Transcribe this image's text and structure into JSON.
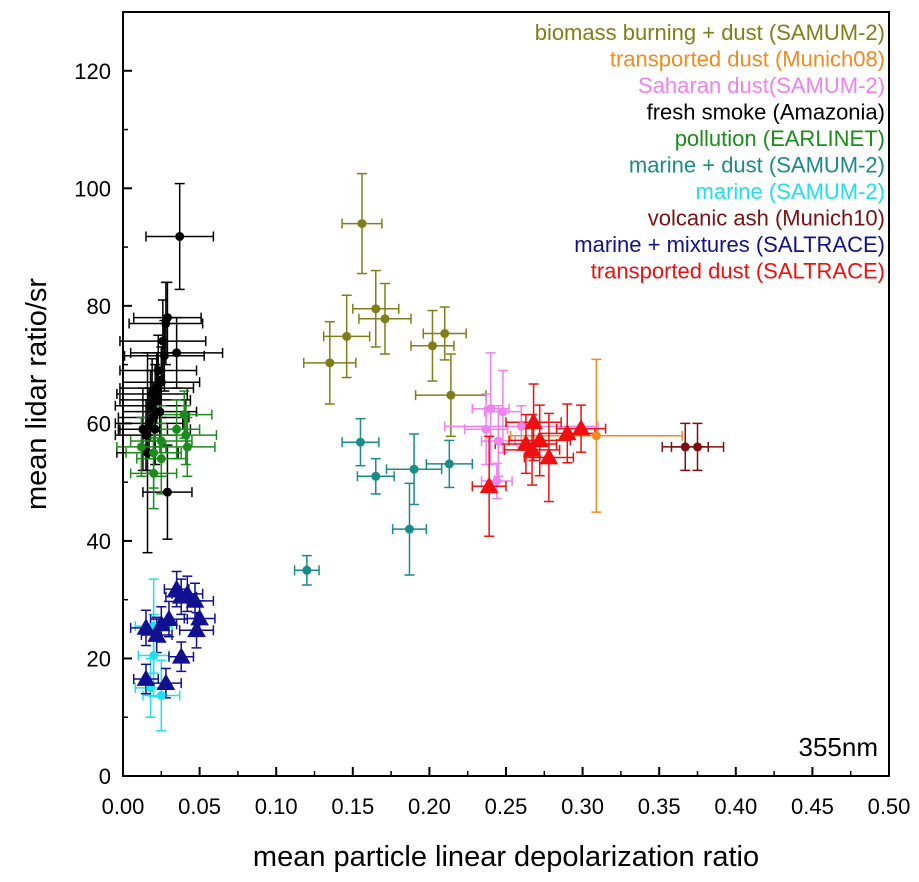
{
  "chart_data": {
    "type": "scatter",
    "title": "",
    "xlabel": "mean particle linear depolarization ratio",
    "ylabel": "mean lidar ratio/sr",
    "xlim": [
      0,
      0.5
    ],
    "ylim": [
      0,
      130
    ],
    "x_ticks": [
      "0.00",
      "0.05",
      "0.10",
      "0.15",
      "0.20",
      "0.25",
      "0.30",
      "0.35",
      "0.40",
      "0.45",
      "0.50"
    ],
    "y_ticks": [
      "0",
      "20",
      "40",
      "60",
      "80",
      "100",
      "120"
    ],
    "annotation": "355nm",
    "legend_position": "top-right",
    "series": [
      {
        "name": "biomass burning + dust (SAMUM-2)",
        "color": "#7f7f1a",
        "marker": "circle",
        "points": [
          {
            "x": 0.156,
            "y": 94,
            "ex": 0.013,
            "ey": 8.5
          },
          {
            "x": 0.146,
            "y": 74.8,
            "ex": 0.015,
            "ey": 7
          },
          {
            "x": 0.165,
            "y": 79.5,
            "ex": 0.015,
            "ey": 6.5
          },
          {
            "x": 0.171,
            "y": 77.8,
            "ex": 0.017,
            "ey": 6
          },
          {
            "x": 0.135,
            "y": 70.3,
            "ex": 0.017,
            "ey": 7
          },
          {
            "x": 0.202,
            "y": 73.2,
            "ex": 0.014,
            "ey": 6
          },
          {
            "x": 0.21,
            "y": 75.3,
            "ex": 0.014,
            "ey": 4.5
          },
          {
            "x": 0.214,
            "y": 64.8,
            "ex": 0.023,
            "ey": 7
          }
        ]
      },
      {
        "name": "transported dust (Munich08)",
        "color": "#f28a1e",
        "marker": "circle",
        "points": [
          {
            "x": 0.309,
            "y": 57.9,
            "ex": 0.056,
            "ey": 13
          }
        ]
      },
      {
        "name": "Saharan dust(SAMUM-2)",
        "color": "#ee82ee",
        "marker": "circle",
        "points": [
          {
            "x": 0.24,
            "y": 62.5,
            "ex": 0.012,
            "ey": 9.5
          },
          {
            "x": 0.248,
            "y": 62,
            "ex": 0.012,
            "ey": 7
          },
          {
            "x": 0.237,
            "y": 59,
            "ex": 0.014,
            "ey": 6
          },
          {
            "x": 0.245,
            "y": 57,
            "ex": 0.011,
            "ey": 6
          },
          {
            "x": 0.26,
            "y": 59.5,
            "ex": 0.05,
            "ey": 3.5
          },
          {
            "x": 0.244,
            "y": 50.2,
            "ex": 0.01,
            "ey": 3
          }
        ]
      },
      {
        "name": "fresh smoke (Amazonia)",
        "color": "#000000",
        "marker": "circle",
        "points": [
          {
            "x": 0.037,
            "y": 91.8,
            "ex": 0.022,
            "ey": 9
          },
          {
            "x": 0.029,
            "y": 78,
            "ex": 0.022,
            "ey": 6
          },
          {
            "x": 0.028,
            "y": 77,
            "ex": 0.024,
            "ey": 7
          },
          {
            "x": 0.026,
            "y": 74,
            "ex": 0.028,
            "ey": 7
          },
          {
            "x": 0.035,
            "y": 72,
            "ex": 0.03,
            "ey": 6
          },
          {
            "x": 0.027,
            "y": 71.5,
            "ex": 0.026,
            "ey": 6
          },
          {
            "x": 0.023,
            "y": 69,
            "ex": 0.025,
            "ey": 6
          },
          {
            "x": 0.025,
            "y": 67,
            "ex": 0.025,
            "ey": 6
          },
          {
            "x": 0.022,
            "y": 66,
            "ex": 0.024,
            "ey": 6
          },
          {
            "x": 0.019,
            "y": 65,
            "ex": 0.023,
            "ey": 6
          },
          {
            "x": 0.021,
            "y": 64,
            "ex": 0.023,
            "ey": 6
          },
          {
            "x": 0.018,
            "y": 63,
            "ex": 0.023,
            "ey": 6
          },
          {
            "x": 0.024,
            "y": 62,
            "ex": 0.024,
            "ey": 6
          },
          {
            "x": 0.02,
            "y": 61,
            "ex": 0.023,
            "ey": 6
          },
          {
            "x": 0.017,
            "y": 60,
            "ex": 0.022,
            "ey": 6
          },
          {
            "x": 0.021,
            "y": 59,
            "ex": 0.023,
            "ey": 6
          },
          {
            "x": 0.015,
            "y": 58,
            "ex": 0.02,
            "ey": 6
          },
          {
            "x": 0.013,
            "y": 59,
            "ex": 0.016,
            "ey": 7
          },
          {
            "x": 0.016,
            "y": 55,
            "ex": 0.02,
            "ey": 17
          },
          {
            "x": 0.029,
            "y": 48.3,
            "ex": 0.016,
            "ey": 8
          }
        ]
      },
      {
        "name": "pollution (EARLINET)",
        "color": "#1a8c1a",
        "marker": "circle",
        "points": [
          {
            "x": 0.04,
            "y": 61.5,
            "ex": 0.018,
            "ey": 4
          },
          {
            "x": 0.035,
            "y": 59,
            "ex": 0.015,
            "ey": 5
          },
          {
            "x": 0.041,
            "y": 58,
            "ex": 0.02,
            "ey": 5
          },
          {
            "x": 0.042,
            "y": 56,
            "ex": 0.018,
            "ey": 5
          },
          {
            "x": 0.025,
            "y": 57,
            "ex": 0.02,
            "ey": 6
          },
          {
            "x": 0.02,
            "y": 55,
            "ex": 0.018,
            "ey": 6
          },
          {
            "x": 0.012,
            "y": 56,
            "ex": 0.016,
            "ey": 5
          },
          {
            "x": 0.025,
            "y": 54,
            "ex": 0.016,
            "ey": 6
          },
          {
            "x": 0.02,
            "y": 51.5,
            "ex": 0.015,
            "ey": 6
          }
        ]
      },
      {
        "name": "marine + dust (SAMUM-2)",
        "color": "#1a8a8a",
        "marker": "circle",
        "points": [
          {
            "x": 0.155,
            "y": 56.8,
            "ex": 0.012,
            "ey": 4
          },
          {
            "x": 0.165,
            "y": 51,
            "ex": 0.012,
            "ey": 3
          },
          {
            "x": 0.19,
            "y": 52.2,
            "ex": 0.018,
            "ey": 6
          },
          {
            "x": 0.213,
            "y": 53.1,
            "ex": 0.015,
            "ey": 4
          },
          {
            "x": 0.187,
            "y": 42,
            "ex": 0.011,
            "ey": 7.8
          },
          {
            "x": 0.12,
            "y": 35,
            "ex": 0.008,
            "ey": 2.5
          }
        ]
      },
      {
        "name": "marine (SAMUM-2)",
        "color": "#1ee0f0",
        "marker": "circle",
        "points": [
          {
            "x": 0.02,
            "y": 25.5,
            "ex": 0.012,
            "ey": 8
          },
          {
            "x": 0.02,
            "y": 20.5,
            "ex": 0.01,
            "ey": 7
          },
          {
            "x": 0.018,
            "y": 15,
            "ex": 0.01,
            "ey": 5
          },
          {
            "x": 0.025,
            "y": 13.7,
            "ex": 0.012,
            "ey": 6
          }
        ]
      },
      {
        "name": "volcanic ash (Munich10)",
        "color": "#7a1010",
        "marker": "circle",
        "points": [
          {
            "x": 0.367,
            "y": 56,
            "ex": 0.015,
            "ey": 4
          },
          {
            "x": 0.375,
            "y": 56,
            "ex": 0.017,
            "ey": 4
          }
        ]
      },
      {
        "name": "marine + mixtures (SALTRACE)",
        "color": "#101090",
        "marker": "triangle",
        "points": [
          {
            "x": 0.035,
            "y": 31.8,
            "ex": 0.008,
            "ey": 3
          },
          {
            "x": 0.042,
            "y": 31,
            "ex": 0.01,
            "ey": 3
          },
          {
            "x": 0.047,
            "y": 29.8,
            "ex": 0.012,
            "ey": 3
          },
          {
            "x": 0.038,
            "y": 30.5,
            "ex": 0.01,
            "ey": 3
          },
          {
            "x": 0.05,
            "y": 26.8,
            "ex": 0.01,
            "ey": 3
          },
          {
            "x": 0.048,
            "y": 24.8,
            "ex": 0.011,
            "ey": 3
          },
          {
            "x": 0.038,
            "y": 20.3,
            "ex": 0.008,
            "ey": 2.5
          },
          {
            "x": 0.015,
            "y": 25.2,
            "ex": 0.01,
            "ey": 3
          },
          {
            "x": 0.025,
            "y": 25.8,
            "ex": 0.01,
            "ey": 3
          },
          {
            "x": 0.03,
            "y": 26.7,
            "ex": 0.012,
            "ey": 3
          },
          {
            "x": 0.022,
            "y": 24,
            "ex": 0.01,
            "ey": 3
          },
          {
            "x": 0.015,
            "y": 16.5,
            "ex": 0.008,
            "ey": 2.5
          },
          {
            "x": 0.028,
            "y": 15.8,
            "ex": 0.01,
            "ey": 2.5
          }
        ]
      },
      {
        "name": "transported dust (SALTRACE)",
        "color": "#ee1010",
        "marker": "triangle",
        "points": [
          {
            "x": 0.268,
            "y": 60.2,
            "ex": 0.018,
            "ey": 6.5
          },
          {
            "x": 0.272,
            "y": 57.1,
            "ex": 0.02,
            "ey": 6
          },
          {
            "x": 0.263,
            "y": 56.5,
            "ex": 0.02,
            "ey": 5
          },
          {
            "x": 0.267,
            "y": 55.5,
            "ex": 0.018,
            "ey": 6
          },
          {
            "x": 0.278,
            "y": 54.2,
            "ex": 0.016,
            "ey": 7.5
          },
          {
            "x": 0.29,
            "y": 58.3,
            "ex": 0.018,
            "ey": 5
          },
          {
            "x": 0.299,
            "y": 59.1,
            "ex": 0.016,
            "ey": 4
          },
          {
            "x": 0.239,
            "y": 49.3,
            "ex": 0.011,
            "ey": 8.5
          }
        ]
      }
    ]
  }
}
